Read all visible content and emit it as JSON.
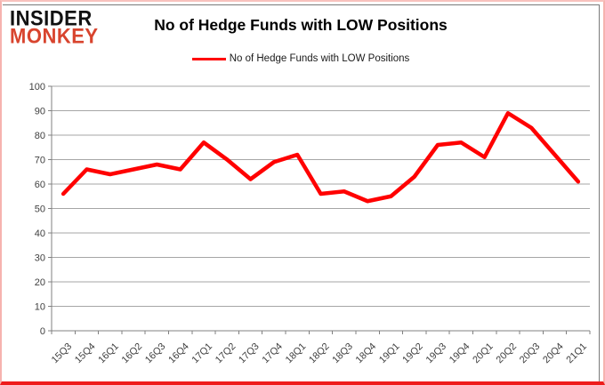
{
  "header": {
    "logo": {
      "line1": "INSIDER",
      "line2": "MONKEY"
    },
    "title": "No of Hedge Funds with LOW Positions",
    "legend": {
      "label": "No of Hedge Funds with LOW Positions",
      "color": "#ff0000"
    }
  },
  "chart_data": {
    "type": "line",
    "title": "No of Hedge Funds with LOW Positions",
    "categories": [
      "15Q3",
      "15Q4",
      "16Q1",
      "16Q2",
      "16Q3",
      "16Q4",
      "17Q1",
      "17Q2",
      "17Q3",
      "17Q4",
      "18Q1",
      "18Q2",
      "18Q3",
      "18Q4",
      "19Q1",
      "19Q2",
      "19Q3",
      "19Q4",
      "20Q1",
      "20Q2",
      "20Q3",
      "20Q4",
      "21Q1"
    ],
    "series": [
      {
        "name": "No of Hedge Funds with LOW Positions",
        "color": "#ff0000",
        "values": [
          56,
          66,
          64,
          66,
          68,
          66,
          77,
          70,
          62,
          69,
          72,
          56,
          57,
          53,
          55,
          63,
          76,
          77,
          71,
          89,
          83,
          72,
          61
        ]
      }
    ],
    "xlabel": "",
    "ylabel": "",
    "ylim": [
      0,
      100
    ],
    "ytick_step": 10,
    "grid": true,
    "legend_position": "top-center"
  },
  "colors": {
    "line": "#ff0000",
    "gridline": "#a6a6a6",
    "axis": "#808080",
    "tick_label": "#404040",
    "logo_monkey": "#d8442e",
    "frame_pink": "#f6b3af",
    "frame_bottom_red": "#ee1c1c"
  }
}
